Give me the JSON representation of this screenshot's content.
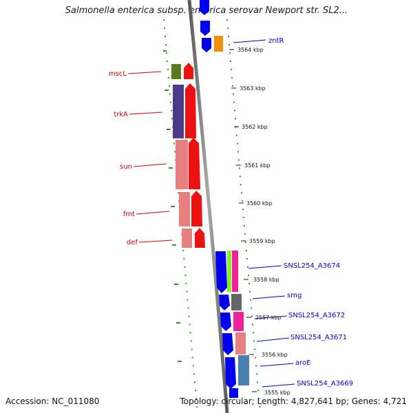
{
  "header": {
    "title": "Salmonella enterica subsp. enterica serovar Newport str. SL2..."
  },
  "footer": {
    "accession": "Accession: NC_011080",
    "summary": "Topology: circular; Length: 4,827,641 bp; Genes: 4,721"
  },
  "ticks": [
    {
      "label": "3564 kbp"
    },
    {
      "label": "3563 kbp"
    },
    {
      "label": "3562 kbp"
    },
    {
      "label": "3561 kbp"
    },
    {
      "label": "3560 kbp"
    },
    {
      "label": "3559 kbp"
    },
    {
      "label": "3558 kbp"
    },
    {
      "label": "3557 kbp"
    },
    {
      "label": "3556 kbp"
    },
    {
      "label": "3555 kbp"
    }
  ],
  "genes_left": [
    {
      "name": "mscL",
      "color": "#cc0000"
    },
    {
      "name": "trkA",
      "color": "#cc0000"
    },
    {
      "name": "sun",
      "color": "#cc0000"
    },
    {
      "name": "fmt",
      "color": "#cc0000"
    },
    {
      "name": "def",
      "color": "#cc0000"
    }
  ],
  "genes_right": [
    {
      "name": "zntR",
      "color": "#0000cc"
    },
    {
      "name": "SNSL254_A3674",
      "color": "#0000cc"
    },
    {
      "name": "smg",
      "color": "#0000cc"
    },
    {
      "name": "SNSL254_A3672",
      "color": "#0000cc"
    },
    {
      "name": "SNSL254_A3671",
      "color": "#0000cc"
    },
    {
      "name": "aroE",
      "color": "#0000cc"
    },
    {
      "name": "SNSL254_A3669",
      "color": "#0000cc"
    }
  ],
  "colors": {
    "backbone": "#777777",
    "dotted_track": "#229922",
    "forward_strand": "#ff0000",
    "reverse_strand": "#0000ff"
  }
}
